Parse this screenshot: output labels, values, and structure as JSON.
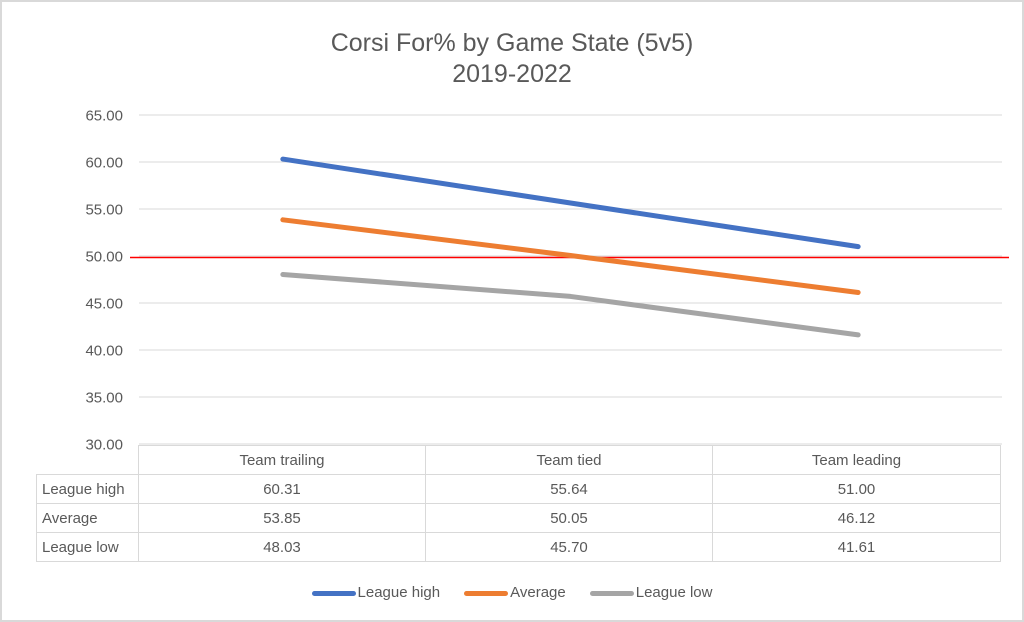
{
  "title": "Corsi For% by Game State (5v5)",
  "subtitle": "2019-2022",
  "chart_data": {
    "type": "line",
    "categories": [
      "Team trailing",
      "Team tied",
      "Team leading"
    ],
    "series": [
      {
        "name": "League high",
        "values": [
          60.31,
          55.64,
          51.0
        ],
        "color": "#4472C4"
      },
      {
        "name": "Average",
        "values": [
          53.85,
          50.05,
          46.12
        ],
        "color": "#ED7D31"
      },
      {
        "name": "League low",
        "values": [
          48.03,
          45.7,
          41.61
        ],
        "color": "#A5A5A5"
      }
    ],
    "ylim": [
      30,
      65
    ],
    "y_tick_step": 5,
    "y_tick_labels": [
      "65.00",
      "60.00",
      "55.00",
      "50.00",
      "45.00",
      "40.00",
      "35.00",
      "30.00"
    ],
    "reference_line": {
      "value": 50,
      "color": "#FF0000"
    },
    "grid": true,
    "legend_position": "bottom",
    "data_table_shown": true,
    "xlabel": "",
    "ylabel": ""
  },
  "colors": {
    "text": "#595959",
    "gridline": "#D9D9D9",
    "table_border": "#D9D9D9",
    "chart_border": "#D9D9D9",
    "background": "#FFFFFF"
  }
}
